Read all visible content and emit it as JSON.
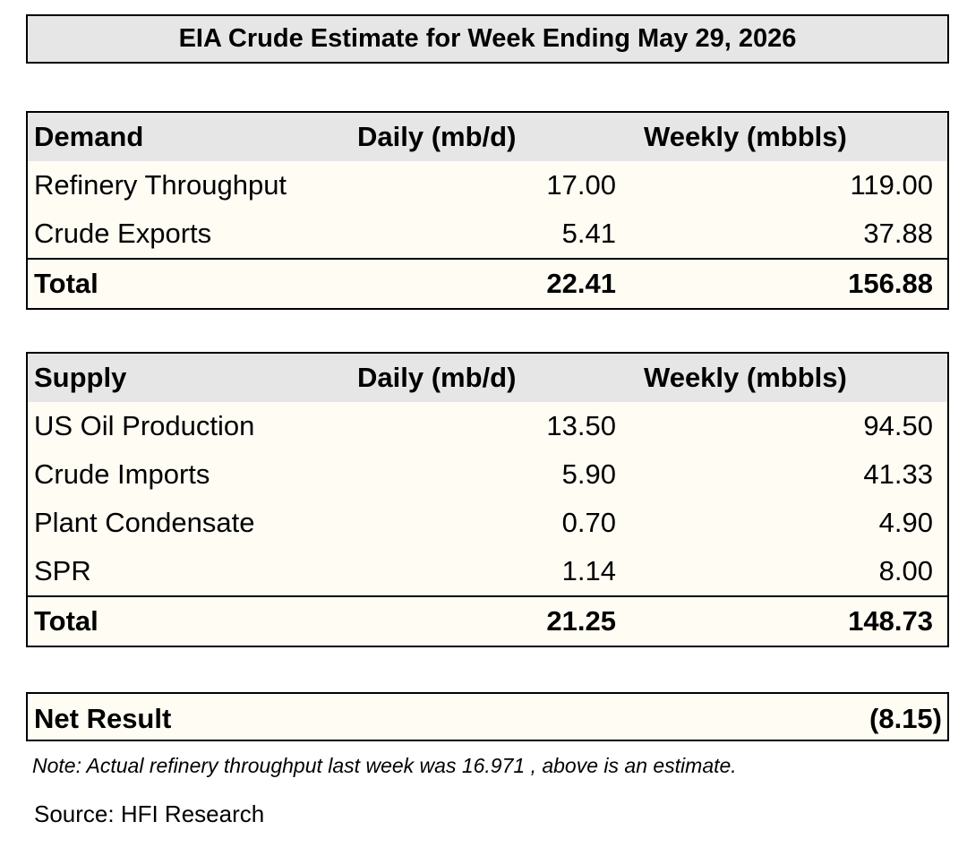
{
  "title": "EIA Crude Estimate for Week Ending May 29, 2026",
  "demand": {
    "header": [
      "Demand",
      "Daily (mb/d)",
      "Weekly (mbbls)"
    ],
    "rows": [
      [
        "Refinery Throughput",
        "17.00",
        "119.00"
      ],
      [
        "Crude Exports",
        "5.41",
        "37.88"
      ]
    ],
    "total": [
      "Total",
      "22.41",
      "156.88"
    ]
  },
  "supply": {
    "header": [
      "Supply",
      "Daily (mb/d)",
      "Weekly (mbbls)"
    ],
    "rows": [
      [
        "US Oil Production",
        "13.50",
        "94.50"
      ],
      [
        "Crude Imports",
        "5.90",
        "41.33"
      ],
      [
        "Plant Condensate",
        "0.70",
        "4.90"
      ],
      [
        "SPR",
        "1.14",
        "8.00"
      ]
    ],
    "total": [
      "Total",
      "21.25",
      "148.73"
    ]
  },
  "net_result": {
    "label": "Net Result",
    "value": "(8.15)"
  },
  "note": "Note: Actual refinery throughput last week was 16.971 , above is an estimate.",
  "source": "Source: HFI Research"
}
